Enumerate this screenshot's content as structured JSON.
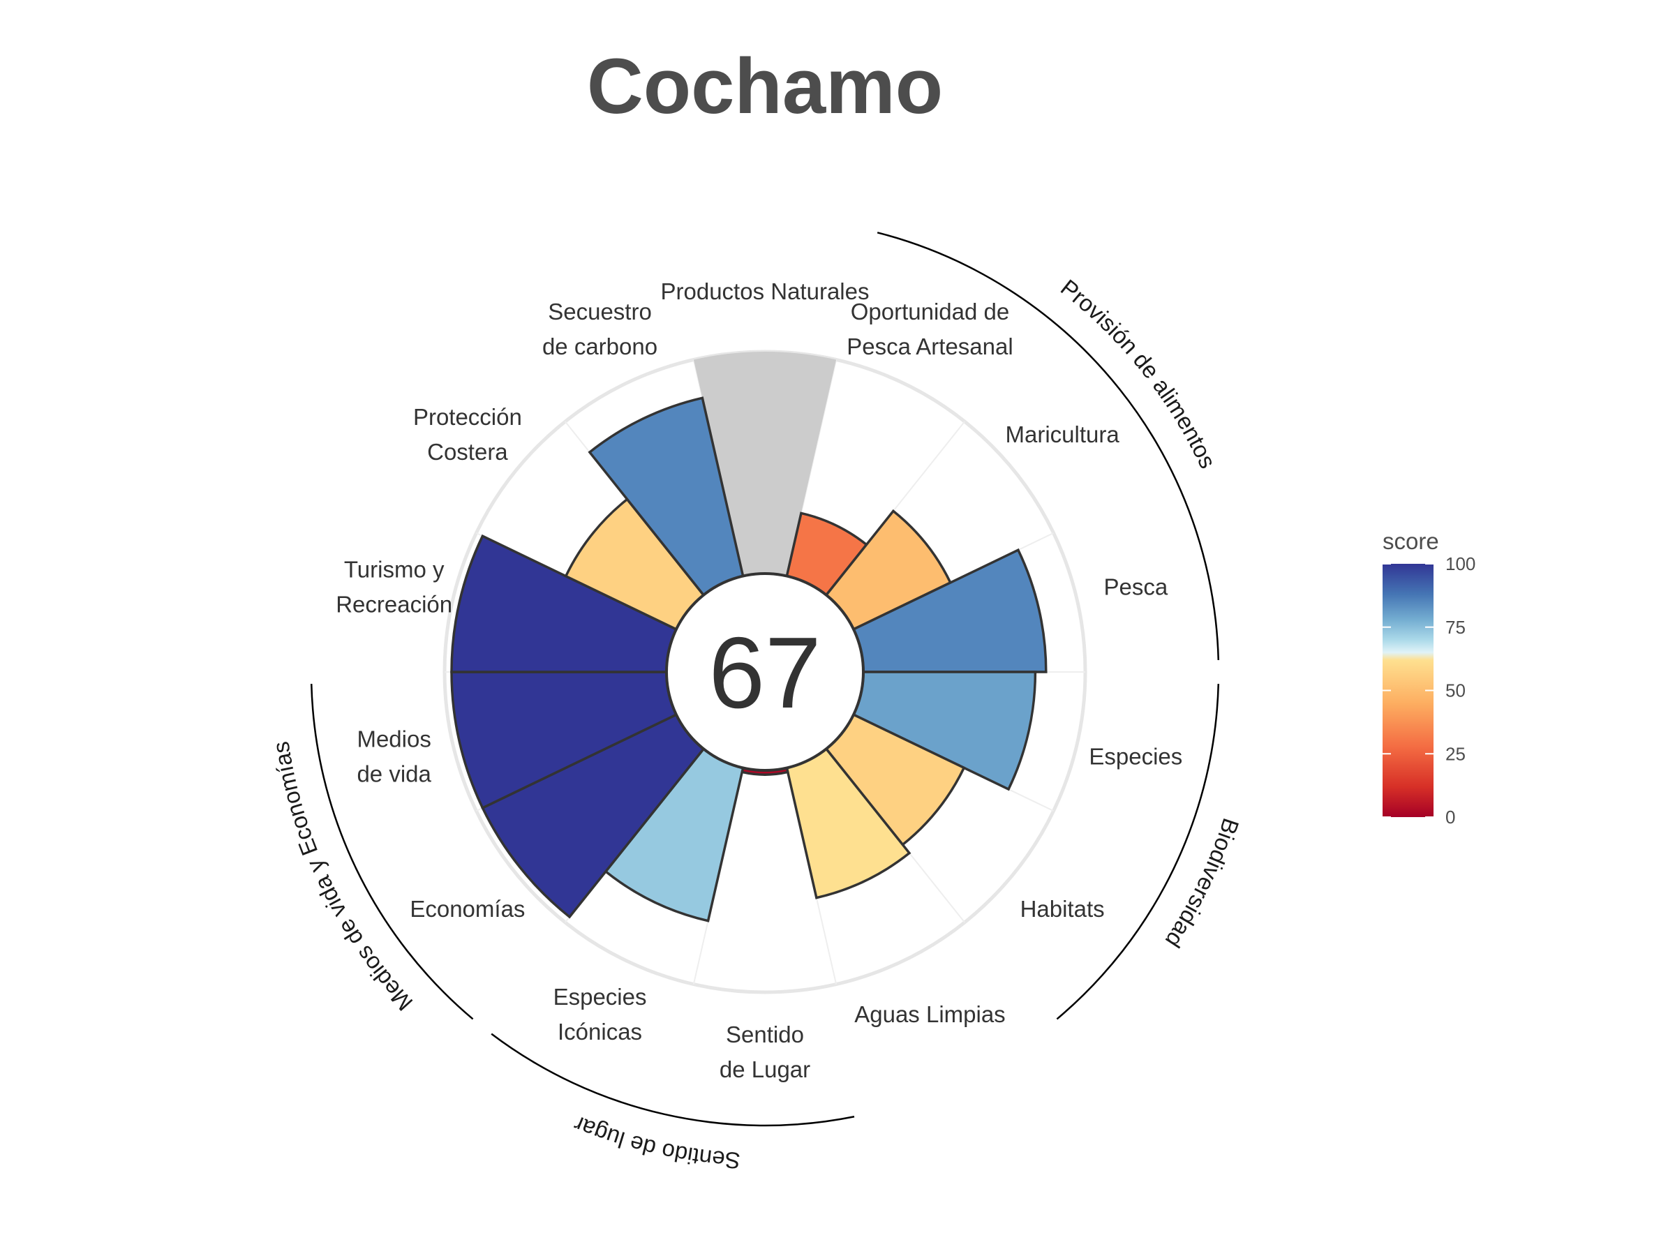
{
  "chart_data": {
    "type": "polar-bar",
    "title": "Cochamo",
    "center_score": "67",
    "value_range": [
      0,
      100
    ],
    "sectors": [
      {
        "label": [
          "Productos Naturales"
        ],
        "value": null,
        "na": true
      },
      {
        "label": [
          "Oportunidad de",
          "Pesca Artesanal"
        ],
        "value": 30
      },
      {
        "label": [
          "Maricultura"
        ],
        "value": 50
      },
      {
        "label": [
          "Pesca"
        ],
        "value": 85
      },
      {
        "label": [
          "Especies"
        ],
        "value": 80
      },
      {
        "label": [
          "Habitats"
        ],
        "value": 57
      },
      {
        "label": [
          "Aguas Limpias"
        ],
        "value": 62
      },
      {
        "label": [
          "Sentido",
          "de Lugar"
        ],
        "value": 2
      },
      {
        "label": [
          "Especies",
          "Icónicas"
        ],
        "value": 73
      },
      {
        "label": [
          "Economías"
        ],
        "value": 100
      },
      {
        "label": [
          "Medios",
          "de vida"
        ],
        "value": 100
      },
      {
        "label": [
          "Turismo y",
          "Recreación"
        ],
        "value": 100
      },
      {
        "label": [
          "Protección",
          "Costera"
        ],
        "value": 57
      },
      {
        "label": [
          "Secuestro",
          "de carbono"
        ],
        "value": 85
      }
    ],
    "groups": [
      {
        "name": "Provisión de alimentos",
        "from": 1,
        "to": 3
      },
      {
        "name": "Biodiversidad",
        "from": 4,
        "to": 5
      },
      {
        "name": "Sentido de lugar",
        "from": 7,
        "to": 8
      },
      {
        "name": "Medios de vida y Economías",
        "from": 9,
        "to": 10
      }
    ],
    "legend": {
      "title": "score",
      "ticks": [
        "100",
        "75",
        "50",
        "25",
        "0"
      ],
      "placement": "right"
    },
    "na_color": "#cccccc"
  }
}
